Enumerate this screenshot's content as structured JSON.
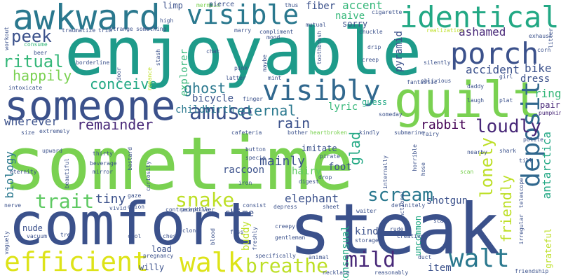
{
  "words": [
    {
      "text": "sometime",
      "color": "#7ad151"
    },
    {
      "text": "comfort",
      "color": "#3b518b"
    },
    {
      "text": "steak",
      "color": "#3b518b"
    },
    {
      "text": "enjoyable",
      "color": "#1e9b8a"
    },
    {
      "text": "guilt",
      "color": "#7ad151"
    },
    {
      "text": "someone",
      "color": "#3b518b"
    },
    {
      "text": "awkward",
      "color": "#2a788e"
    },
    {
      "text": "identical",
      "color": "#22a884"
    },
    {
      "text": "visible",
      "color": "#2a788e"
    },
    {
      "text": "porch",
      "color": "#3b518b"
    },
    {
      "text": "visibly",
      "color": "#31688e"
    },
    {
      "text": "deposit",
      "color": "#31688e"
    },
    {
      "text": "efficient",
      "color": "#dde318"
    },
    {
      "text": "walk",
      "color": "#dde318"
    },
    {
      "text": "walt",
      "color": "#2a788e"
    },
    {
      "text": "mild",
      "color": "#482878"
    },
    {
      "text": "breathe",
      "color": "#bddf26"
    },
    {
      "text": "amuse",
      "color": "#3b518b"
    },
    {
      "text": "trait",
      "color": "#5ec962"
    },
    {
      "text": "snake",
      "color": "#bddf26"
    },
    {
      "text": "scream",
      "color": "#2a788e"
    },
    {
      "text": "loudly",
      "color": "#482878"
    },
    {
      "text": "lonely",
      "color": "#bddf26"
    },
    {
      "text": "friendly",
      "color": "#bddf26"
    },
    {
      "text": "ritual",
      "color": "#35b779"
    },
    {
      "text": "peek",
      "color": "#3b518b"
    },
    {
      "text": "happily",
      "color": "#7ad151"
    },
    {
      "text": "conceive",
      "color": "#22a884"
    },
    {
      "text": "remainder",
      "color": "#482878"
    },
    {
      "text": "eternal",
      "color": "#2a788e"
    },
    {
      "text": "rain",
      "color": "#3b518b"
    },
    {
      "text": "ghost",
      "color": "#2a788e"
    },
    {
      "text": "bicycle",
      "color": "#3b518b"
    },
    {
      "text": "wherever",
      "color": "#3b518b"
    },
    {
      "text": "biology",
      "color": "#2a788e"
    },
    {
      "text": "tiny",
      "color": "#3b518b"
    },
    {
      "text": "mainly",
      "color": "#3b518b"
    },
    {
      "text": "glad",
      "color": "#22a884"
    },
    {
      "text": "rabbit",
      "color": "#440154"
    },
    {
      "text": "lyric",
      "color": "#35b779"
    },
    {
      "text": "guess",
      "color": "#22a884"
    },
    {
      "text": "accident",
      "color": "#3b518b"
    },
    {
      "text": "bike",
      "color": "#3b518b"
    },
    {
      "text": "dress",
      "color": "#3b518b"
    },
    {
      "text": "ring",
      "color": "#35b779"
    },
    {
      "text": "pair",
      "color": "#482878"
    },
    {
      "text": "antarctica",
      "color": "#22a884"
    },
    {
      "text": "ashamed",
      "color": "#482878"
    },
    {
      "text": "pyramid",
      "color": "#3b518b"
    },
    {
      "text": "accent",
      "color": "#35b779"
    },
    {
      "text": "fiber",
      "color": "#3b518b"
    },
    {
      "text": "naive",
      "color": "#35b779"
    },
    {
      "text": "sorry",
      "color": "#3b518b"
    },
    {
      "text": "elephant",
      "color": "#3b518b"
    },
    {
      "text": "raccoon",
      "color": "#3b518b"
    },
    {
      "text": "hairy",
      "color": "#5ec962"
    },
    {
      "text": "foot",
      "color": "#3b518b"
    },
    {
      "text": "chime",
      "color": "#3b518b"
    },
    {
      "text": "shotgun",
      "color": "#3b518b"
    },
    {
      "text": "item",
      "color": "#3b518b"
    },
    {
      "text": "kind",
      "color": "#3b518b"
    },
    {
      "text": "buddy",
      "color": "#bddf26"
    },
    {
      "text": "nude",
      "color": "#3b518b"
    },
    {
      "text": "willy",
      "color": "#3b518b"
    },
    {
      "text": "load",
      "color": "#3b518b"
    },
    {
      "text": "imitate",
      "color": "#3b518b"
    },
    {
      "text": "childbirth",
      "color": "#2a788e"
    },
    {
      "text": "explorer",
      "color": "#35b779"
    },
    {
      "text": "consensual",
      "color": "#22a884"
    },
    {
      "text": "uncommon",
      "color": "#22a884"
    },
    {
      "text": "grateful",
      "color": "#bddf26"
    },
    {
      "text": "limp",
      "color": "#3b518b"
    },
    {
      "text": "mermaid",
      "color": "#7ad151"
    },
    {
      "text": "pierce",
      "color": "#3b518b"
    },
    {
      "text": "thus",
      "color": "#3b518b"
    },
    {
      "text": "cigarette",
      "color": "#3b518b"
    },
    {
      "text": "workout",
      "color": "#3b518b"
    },
    {
      "text": "traumatize",
      "color": "#3b518b"
    },
    {
      "text": "trim",
      "color": "#3b518b"
    },
    {
      "text": "strange",
      "color": "#3b518b"
    },
    {
      "text": "something",
      "color": "#3b518b"
    },
    {
      "text": "high",
      "color": "#3b518b"
    },
    {
      "text": "marry",
      "color": "#3b518b"
    },
    {
      "text": "compliment",
      "color": "#3b518b"
    },
    {
      "text": "mutual",
      "color": "#3b518b"
    },
    {
      "text": "chuckle",
      "color": "#3b518b"
    },
    {
      "text": "realization",
      "color": "#bddf26"
    },
    {
      "text": "exhaust",
      "color": "#3b518b"
    },
    {
      "text": "litter",
      "color": "#3b518b"
    },
    {
      "text": "consume",
      "color": "#35b779"
    },
    {
      "text": "beer",
      "color": "#3b518b"
    },
    {
      "text": "borderline",
      "color": "#3b518b"
    },
    {
      "text": "stash",
      "color": "#3b518b"
    },
    {
      "text": "mood",
      "color": "#3b518b"
    },
    {
      "text": "drip",
      "color": "#3b518b"
    },
    {
      "text": "corn",
      "color": "#3b518b"
    },
    {
      "text": "intoxicate",
      "color": "#3b518b"
    },
    {
      "text": "romance",
      "color": "#bddf26"
    },
    {
      "text": "door",
      "color": "#3b518b"
    },
    {
      "text": "chat",
      "color": "#3b518b"
    },
    {
      "text": "pink",
      "color": "#3b518b"
    },
    {
      "text": "latter",
      "color": "#3b518b"
    },
    {
      "text": "mint",
      "color": "#3b518b"
    },
    {
      "text": "maybe",
      "color": "#3b518b"
    },
    {
      "text": "toothbrush",
      "color": "#3b518b"
    },
    {
      "text": "creep",
      "color": "#3b518b"
    },
    {
      "text": "silently",
      "color": "#3b518b"
    },
    {
      "text": "oblivious",
      "color": "#3b518b"
    },
    {
      "text": "fantastic",
      "color": "#3b518b"
    },
    {
      "text": "daddy",
      "color": "#3b518b"
    },
    {
      "text": "girl",
      "color": "#3b518b"
    },
    {
      "text": "laugh",
      "color": "#3b518b"
    },
    {
      "text": "plat",
      "color": "#3b518b"
    },
    {
      "text": "pumpkin",
      "color": "#482878"
    },
    {
      "text": "finger",
      "color": "#3b518b"
    },
    {
      "text": "extremely",
      "color": "#3b518b"
    },
    {
      "text": "size",
      "color": "#3b518b"
    },
    {
      "text": "cafeteria",
      "color": "#3b518b"
    },
    {
      "text": "bother",
      "color": "#3b518b"
    },
    {
      "text": "heartbroken",
      "color": "#7ad151"
    },
    {
      "text": "kindly",
      "color": "#3b518b"
    },
    {
      "text": "submarine",
      "color": "#3b518b"
    },
    {
      "text": "fairy",
      "color": "#3b518b"
    },
    {
      "text": "someday",
      "color": "#3b518b"
    },
    {
      "text": "polite",
      "color": "#3b518b"
    },
    {
      "text": "till",
      "color": "#3b518b"
    },
    {
      "text": "shark",
      "color": "#3b518b"
    },
    {
      "text": "nearby",
      "color": "#3b518b"
    },
    {
      "text": "upward",
      "color": "#3b518b"
    },
    {
      "text": "thirty",
      "color": "#3b518b"
    },
    {
      "text": "bastard",
      "color": "#3b518b"
    },
    {
      "text": "button",
      "color": "#3b518b"
    },
    {
      "text": "pirate",
      "color": "#3b518b"
    },
    {
      "text": "specie",
      "color": "#3b518b"
    },
    {
      "text": "internally",
      "color": "#3b518b"
    },
    {
      "text": "eternity",
      "color": "#3b518b"
    },
    {
      "text": "beverage",
      "color": "#3b518b"
    },
    {
      "text": "mirror",
      "color": "#3b518b"
    },
    {
      "text": "beautiful",
      "color": "#3b518b"
    },
    {
      "text": "curiosity",
      "color": "#3b518b"
    },
    {
      "text": "gaze",
      "color": "#3b518b"
    },
    {
      "text": "onion",
      "color": "#3b518b"
    },
    {
      "text": "vivid",
      "color": "#3b518b"
    },
    {
      "text": "contraceptive",
      "color": "#3b518b"
    },
    {
      "text": "painkiller",
      "color": "#3b518b"
    },
    {
      "text": "iron",
      "color": "#3b518b"
    },
    {
      "text": "digest",
      "color": "#3b518b"
    },
    {
      "text": "drop",
      "color": "#3b518b"
    },
    {
      "text": "unctional",
      "color": "#3b518b"
    },
    {
      "text": "horrible",
      "color": "#3b518b"
    },
    {
      "text": "hose",
      "color": "#3b518b"
    },
    {
      "text": "scan",
      "color": "#7ad151"
    },
    {
      "text": "irregular",
      "color": "#3b518b"
    },
    {
      "text": "telescope",
      "color": "#3b518b"
    },
    {
      "text": "nerve",
      "color": "#3b518b"
    },
    {
      "text": "consist",
      "color": "#3b518b"
    },
    {
      "text": "depress",
      "color": "#3b518b"
    },
    {
      "text": "sheet",
      "color": "#3b518b"
    },
    {
      "text": "waiter",
      "color": "#3b518b"
    },
    {
      "text": "definitely",
      "color": "#3b518b"
    },
    {
      "text": "rude",
      "color": "#3b518b"
    },
    {
      "text": "trek",
      "color": "#3b518b"
    },
    {
      "text": "vacuum",
      "color": "#3b518b"
    },
    {
      "text": "vaguely",
      "color": "#3b518b"
    },
    {
      "text": "chest",
      "color": "#3b518b"
    },
    {
      "text": "clone",
      "color": "#3b518b"
    },
    {
      "text": "cool",
      "color": "#3b518b"
    },
    {
      "text": "blood",
      "color": "#3b518b"
    },
    {
      "text": "fuss",
      "color": "#3b518b"
    },
    {
      "text": "freshly",
      "color": "#3b518b"
    },
    {
      "text": "creepy",
      "color": "#3b518b"
    },
    {
      "text": "gentleman",
      "color": "#3b518b"
    },
    {
      "text": "scalp",
      "color": "#3b518b"
    },
    {
      "text": "creative",
      "color": "#3b518b"
    },
    {
      "text": "storage",
      "color": "#3b518b"
    },
    {
      "text": "pregnancy",
      "color": "#3b518b"
    },
    {
      "text": "specifically",
      "color": "#3b518b"
    },
    {
      "text": "animal",
      "color": "#3b518b"
    },
    {
      "text": "necklace",
      "color": "#3b518b"
    },
    {
      "text": "reasonably",
      "color": "#3b518b"
    },
    {
      "text": "duct",
      "color": "#3b518b"
    },
    {
      "text": "friendship",
      "color": "#3b518b"
    }
  ]
}
